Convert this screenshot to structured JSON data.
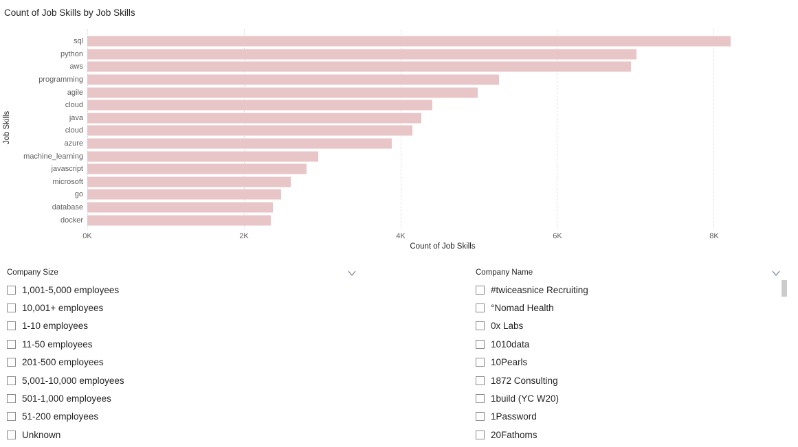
{
  "colors": {
    "bar": "#e8c5c7",
    "text_dark": "#252423",
    "text_gray": "#605e5c",
    "gridline": "#d9d9d9",
    "checkbox_border": "#8a8a8a",
    "chevron": "#708090",
    "scrollbar_thumb": "#cbcbcb"
  },
  "chart_data": {
    "type": "bar",
    "orientation": "horizontal",
    "title": "Count of Job Skills by Job Skills",
    "xlabel": "Count of Job Skills",
    "ylabel": "Job Skills",
    "categories": [
      "sql",
      "python",
      "aws",
      "programming",
      "agile",
      "cloud",
      "java",
      "cloud",
      "azure",
      "machine_learning",
      "javascript",
      "microsoft",
      "go",
      "database",
      "docker"
    ],
    "values": [
      8210,
      7010,
      6940,
      5250,
      4980,
      4400,
      4260,
      4150,
      3890,
      2950,
      2800,
      2600,
      2470,
      2370,
      2340
    ],
    "xlim": [
      0,
      9070
    ],
    "xticks": [
      {
        "value": 0,
        "label": "0K"
      },
      {
        "value": 2000,
        "label": "2K"
      },
      {
        "value": 4000,
        "label": "4K"
      },
      {
        "value": 6000,
        "label": "6K"
      },
      {
        "value": 8000,
        "label": "8K"
      }
    ],
    "grid": "vertical-dotted",
    "legend": "none",
    "bar_color": "#e8c5c7"
  },
  "slicers": {
    "company_size": {
      "header": "Company Size",
      "items": [
        {
          "label": "1,001-5,000 employees",
          "checked": false
        },
        {
          "label": "10,001+ employees",
          "checked": false
        },
        {
          "label": "1-10 employees",
          "checked": false
        },
        {
          "label": "11-50 employees",
          "checked": false
        },
        {
          "label": "201-500 employees",
          "checked": false
        },
        {
          "label": "5,001-10,000 employees",
          "checked": false
        },
        {
          "label": "501-1,000 employees",
          "checked": false
        },
        {
          "label": "51-200 employees",
          "checked": false
        },
        {
          "label": "Unknown",
          "checked": false
        }
      ]
    },
    "company_name": {
      "header": "Company Name",
      "items": [
        {
          "label": "#twiceasnice Recruiting",
          "checked": false
        },
        {
          "label": "°Nomad Health",
          "checked": false
        },
        {
          "label": "0x Labs",
          "checked": false
        },
        {
          "label": "1010data",
          "checked": false
        },
        {
          "label": "10Pearls",
          "checked": false
        },
        {
          "label": "1872 Consulting",
          "checked": false
        },
        {
          "label": "1build (YC W20)",
          "checked": false
        },
        {
          "label": "1Password",
          "checked": false
        },
        {
          "label": "20Fathoms",
          "checked": false
        }
      ]
    }
  }
}
